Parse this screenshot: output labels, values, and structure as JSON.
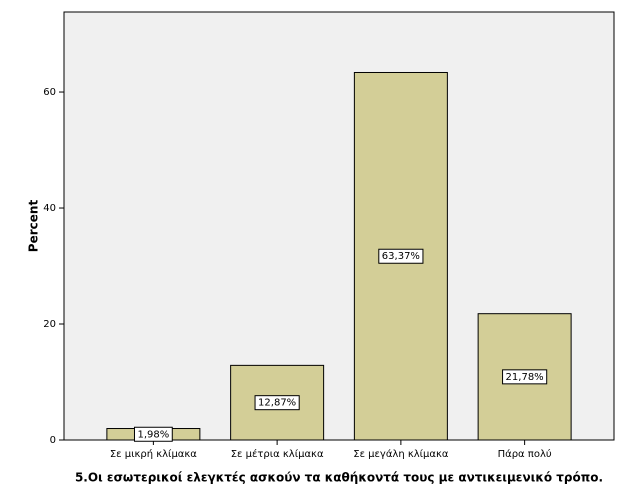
{
  "chart_data": {
    "type": "bar",
    "x_label": "5.Οι εσωτερικοί ελεγκτές ασκούν τα καθήκοντά τους με αντικειμενικό τρόπο.",
    "y_label": "Percent",
    "categories": [
      "Σε μικρή κλίμακα",
      "Σε μέτρια κλίμακα",
      "Σε μεγάλη κλίμακα",
      "Πάρα πολύ"
    ],
    "values": [
      1.98,
      12.87,
      63.37,
      21.78
    ],
    "value_labels": [
      "1,98%",
      "12,87%",
      "63,37%",
      "21,78%"
    ],
    "color": "#d3ce97",
    "ylim": [
      0,
      73.8
    ],
    "yticks": [
      0,
      20,
      40,
      60
    ]
  }
}
